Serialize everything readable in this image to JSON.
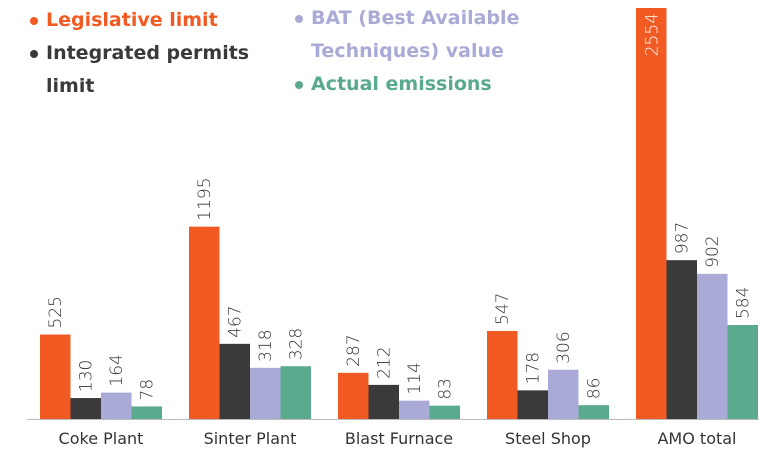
{
  "chart_data": {
    "type": "bar",
    "categories": [
      "Coke Plant",
      "Sinter Plant",
      "Blast Furnace",
      "Steel Shop",
      "AMO total"
    ],
    "series": [
      {
        "name": "Legislative limit",
        "color": "#f15a22",
        "values": [
          525,
          1195,
          287,
          547,
          2554
        ]
      },
      {
        "name": "Integrated permits limit",
        "color": "#3a3a3a",
        "values": [
          130,
          467,
          212,
          178,
          987
        ]
      },
      {
        "name": "BAT (Best Available Techniques) value",
        "color": "#aaaad6",
        "values": [
          164,
          318,
          114,
          306,
          902
        ]
      },
      {
        "name": "Actual emissions",
        "color": "#5aaa8e",
        "values": [
          78,
          328,
          83,
          86,
          584
        ]
      }
    ]
  }
}
